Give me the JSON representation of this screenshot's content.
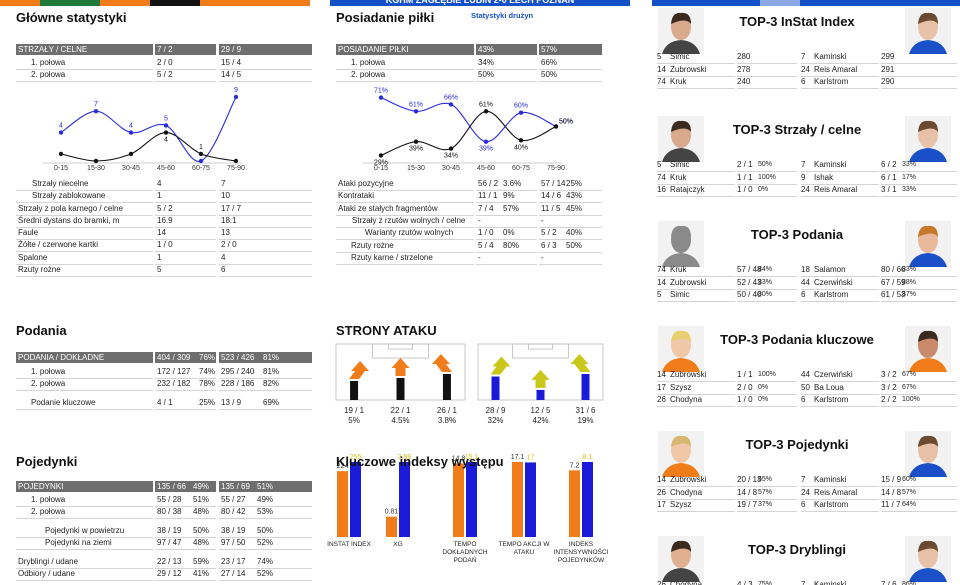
{
  "header": {
    "title": "KGHM ZAGŁĘBIE LUBIN 2-0 LECH POZNAŃ",
    "subtitle": "Statystyki drużyn"
  },
  "main_stats": {
    "title": "Główne statystyki",
    "shots": {
      "header": [
        "STRZAŁY / CELNE",
        "7 / 2",
        "29 / 9"
      ],
      "rows": [
        [
          "1. połowa",
          "2 / 0",
          "15 / 4"
        ],
        [
          "2. połowa",
          "5 / 2",
          "14 / 5"
        ]
      ]
    },
    "chart": {
      "type": "line",
      "categories": [
        "0-15",
        "15-30",
        "30-45",
        "45-60",
        "60-75",
        "75-90"
      ],
      "ylim": [
        0,
        9
      ],
      "series": [
        {
          "color": "#2b2bdc",
          "values": [
            4,
            7,
            4,
            5,
            0,
            9
          ],
          "value_labels": [
            "4",
            "7",
            "4",
            "5",
            null,
            "9"
          ]
        },
        {
          "color": "#111111",
          "values": [
            1,
            0,
            1,
            4,
            1,
            0
          ],
          "value_labels": [
            null,
            null,
            null,
            "4",
            "1",
            null
          ]
        }
      ]
    },
    "table": {
      "rows": [
        [
          "Strzały niecelne",
          "4",
          "7"
        ],
        [
          "Strzały zablokowane",
          "1",
          "10"
        ],
        [
          "Strzały z pola karnego / celne",
          "5 / 2",
          "17 / 7"
        ],
        [
          "Średni dystans do bramki, m",
          "16.9",
          "18.1"
        ],
        [
          "Faule",
          "14",
          "13"
        ],
        [
          "Żółte / czerwone kartki",
          "1 / 0",
          "2 / 0"
        ],
        [
          "Spalone",
          "1",
          "4"
        ],
        [
          "Rzuty rożne",
          "5",
          "6"
        ]
      ]
    }
  },
  "passes": {
    "title": "Podania",
    "table": {
      "header": [
        "PODANIA / DOKŁADNE",
        [
          "404 / 309",
          "76%"
        ],
        [
          "523 / 426",
          "81%"
        ]
      ],
      "rows": [
        [
          "1. połowa",
          [
            "172 / 127",
            "74%"
          ],
          [
            "295 / 240",
            "81%"
          ]
        ],
        [
          "2. połowa",
          [
            "232 / 182",
            "78%"
          ],
          [
            "228 / 186",
            "82%"
          ]
        ],
        [
          "Podanie kluczowe",
          [
            "4 / 1",
            "25%"
          ],
          [
            "13 / 9",
            "69%"
          ]
        ]
      ]
    }
  },
  "duels": {
    "title": "Pojedynki",
    "table": {
      "header": [
        "POJEDYNKI",
        [
          "135 / 66",
          "49%"
        ],
        [
          "135 / 69",
          "51%"
        ]
      ],
      "rows": [
        [
          "1. połowa",
          [
            "55 / 28",
            "51%"
          ],
          [
            "55 / 27",
            "49%"
          ]
        ],
        [
          "2. połowa",
          [
            "80 / 38",
            "48%"
          ],
          [
            "80 / 42",
            "53%"
          ]
        ],
        [
          "Pojedynki w powietrzu",
          [
            "38 / 19",
            "50%"
          ],
          [
            "38 / 19",
            "50%"
          ]
        ],
        [
          "Pojedynki na ziemi",
          [
            "97 / 47",
            "48%"
          ],
          [
            "97 / 50",
            "52%"
          ]
        ],
        [
          "Dryblingi / udane",
          [
            "22 / 13",
            "59%"
          ],
          [
            "23 / 17",
            "74%"
          ]
        ],
        [
          "Odbiory / udane",
          [
            "29 / 12",
            "41%"
          ],
          [
            "27 / 14",
            "52%"
          ]
        ]
      ]
    }
  },
  "possession": {
    "title": "Posiadanie piłki",
    "table": {
      "header": [
        "POSIADANIE PIŁKI",
        "43%",
        "57%"
      ],
      "rows": [
        [
          "1. połowa",
          "34%",
          "66%"
        ],
        [
          "2. połowa",
          "50%",
          "50%"
        ]
      ]
    },
    "chart": {
      "type": "line",
      "categories": [
        "0-15",
        "15-30",
        "30-45",
        "45-60",
        "60-75",
        "75-90"
      ],
      "ylim": [
        25,
        75
      ],
      "series": [
        {
          "color": "#2b2bdc",
          "values": [
            71,
            61,
            66,
            39,
            60,
            50
          ],
          "value_labels": [
            "71%",
            "61%",
            "66%",
            "39%",
            "60%",
            "50%"
          ]
        },
        {
          "color": "#111111",
          "values": [
            29,
            39,
            34,
            61,
            40,
            50
          ],
          "value_labels": [
            "29%",
            "39%",
            "34%",
            "61%",
            "40%",
            "50%"
          ]
        }
      ]
    },
    "attacks": {
      "rows": [
        [
          "Ataki pozycyjne",
          [
            "56 / 2",
            "3.6%"
          ],
          [
            "57 / 14",
            "25%"
          ]
        ],
        [
          "Kontrataki",
          [
            "11 / 1",
            "9%"
          ],
          [
            "14 / 6",
            "43%"
          ]
        ],
        [
          "Ataki ze stałych fragmentów",
          [
            "7 / 4",
            "57%"
          ],
          [
            "11 / 5",
            "45%"
          ]
        ],
        [
          "Strzały z rzutów wolnych / celne",
          "-",
          "-"
        ],
        [
          "Warianty rzutów wolnych",
          [
            "1 / 0",
            "0%"
          ],
          [
            "5 / 2",
            "40%"
          ]
        ],
        [
          "Rzuty rożne",
          [
            "5 / 4",
            "80%"
          ],
          [
            "6 / 3",
            "50%"
          ]
        ],
        [
          "Rzuty karne / strzelone",
          "-",
          "-"
        ]
      ]
    }
  },
  "attack_sides": {
    "title": "STRONY ATAKU",
    "teams": [
      {
        "color": "#111111",
        "arrow_color": "#f07d1a",
        "zones": [
          {
            "attacks": 19,
            "label": "19 / 1",
            "share": "5%"
          },
          {
            "attacks": 22,
            "label": "22 / 1",
            "share": "4.5%"
          },
          {
            "attacks": 26,
            "label": "26 / 1",
            "share": "3.8%"
          }
        ]
      },
      {
        "color": "#1a1ad8",
        "arrow_color": "#c9c81a",
        "zones": [
          {
            "attacks": 28,
            "label": "28 / 9",
            "share": "32%"
          },
          {
            "attacks": 12,
            "label": "12 / 5",
            "share": "42%"
          },
          {
            "attacks": 31,
            "label": "31 / 6",
            "share": "19%"
          }
        ]
      }
    ]
  },
  "key_indexes": {
    "type": "bar",
    "title": "Kluczowe indeksy występu",
    "categories": [
      "INSTAT INDEX",
      "XG",
      "TEMPO DOKŁADNYCH PODAŃ",
      "TEMPO AKCJI W ATAKU",
      "INDEKS INTENSYWNOŚCI POJEDYNKÓW"
    ],
    "series": [
      {
        "color": "#f07d1a",
        "label_color": "#333333",
        "values": [
          224,
          0.81,
          14.8,
          17.1,
          7.2
        ]
      },
      {
        "color": "#1a1ad8",
        "label_color": "#d2c21a",
        "values": [
          255,
          2.99,
          15.1,
          17,
          8.1
        ]
      }
    ]
  },
  "top3": [
    {
      "title": "TOP-3 InStat Index",
      "rows": [
        {
          "left": [
            "5",
            "Simic",
            "280"
          ],
          "right": [
            "7",
            "Kaminski",
            "299"
          ]
        },
        {
          "left": [
            "14",
            "Zubrowski",
            "278"
          ],
          "right": [
            "24",
            "Reis Amaral",
            "291"
          ]
        },
        {
          "left": [
            "74",
            "Kruk",
            "240"
          ],
          "right": [
            "6",
            "Karlstrom",
            "290"
          ]
        }
      ]
    },
    {
      "title": "TOP-3 Strzały / celne",
      "rows": [
        {
          "left": [
            "5",
            "Simic",
            "2 / 1",
            "50%"
          ],
          "right": [
            "7",
            "Kaminski",
            "6 / 2",
            "33%"
          ]
        },
        {
          "left": [
            "74",
            "Kruk",
            "1 / 1",
            "100%"
          ],
          "right": [
            "9",
            "Ishak",
            "6 / 1",
            "17%"
          ]
        },
        {
          "left": [
            "16",
            "Ratajczyk",
            "1 / 0",
            "0%"
          ],
          "right": [
            "24",
            "Reis Amaral",
            "3 / 1",
            "33%"
          ]
        }
      ]
    },
    {
      "title": "TOP-3 Podania",
      "rows": [
        {
          "left": [
            "74",
            "Kruk",
            "57 / 48",
            "84%"
          ],
          "right": [
            "18",
            "Salamon",
            "80 / 66",
            "83%"
          ]
        },
        {
          "left": [
            "14",
            "Zubrowski",
            "52 / 43",
            "83%"
          ],
          "right": [
            "44",
            "Czerwiński",
            "67 / 59",
            "88%"
          ]
        },
        {
          "left": [
            "5",
            "Simic",
            "50 / 40",
            "80%"
          ],
          "right": [
            "6",
            "Karlstrom",
            "61 / 53",
            "87%"
          ]
        }
      ]
    },
    {
      "title": "TOP-3 Podania kluczowe",
      "rows": [
        {
          "left": [
            "14",
            "Zubrowski",
            "1 / 1",
            "100%"
          ],
          "right": [
            "44",
            "Czerwiński",
            "3 / 2",
            "67%"
          ]
        },
        {
          "left": [
            "17",
            "Szysz",
            "2 / 0",
            "0%"
          ],
          "right": [
            "50",
            "Ba Loua",
            "3 / 2",
            "67%"
          ]
        },
        {
          "left": [
            "26",
            "Chodyna",
            "1 / 0",
            "0%"
          ],
          "right": [
            "6",
            "Karlstrom",
            "2 / 2",
            "100%"
          ]
        }
      ]
    },
    {
      "title": "TOP-3 Pojedynki",
      "rows": [
        {
          "left": [
            "14",
            "Zubrowski",
            "20 / 13",
            "65%"
          ],
          "right": [
            "7",
            "Kaminski",
            "15 / 9",
            "60%"
          ]
        },
        {
          "left": [
            "26",
            "Chodyna",
            "14 / 8",
            "57%"
          ],
          "right": [
            "24",
            "Reis Amaral",
            "14 / 8",
            "57%"
          ]
        },
        {
          "left": [
            "17",
            "Szysz",
            "19 / 7",
            "37%"
          ],
          "right": [
            "6",
            "Karlstrom",
            "11 / 7",
            "64%"
          ]
        }
      ]
    },
    {
      "title": "TOP-3 Dryblingi",
      "rows": [
        {
          "left": [
            "26",
            "Chodyna",
            "4 / 3",
            "75%"
          ],
          "right": [
            "7",
            "Kaminski",
            "7 / 6",
            "86%"
          ]
        }
      ]
    }
  ]
}
